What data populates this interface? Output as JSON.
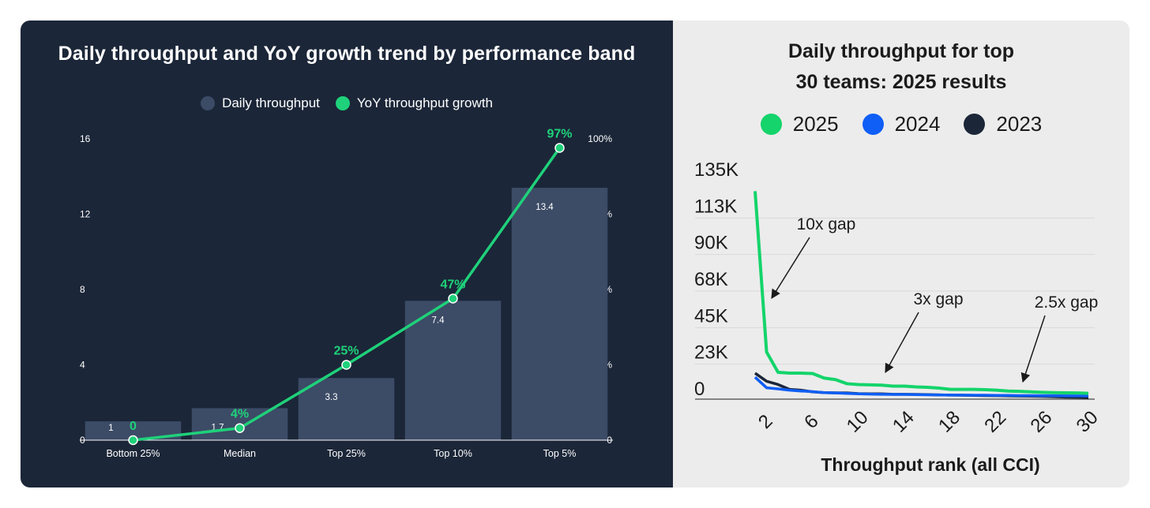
{
  "chart_data": [
    {
      "type": "bar",
      "title": "Daily throughput and YoY growth trend by performance band",
      "categories": [
        "Bottom 25%",
        "Median",
        "Top 25%",
        "Top 10%",
        "Top 5%"
      ],
      "series": [
        {
          "name": "Daily throughput",
          "type": "bar",
          "values": [
            1,
            1.7,
            3.3,
            7.4,
            13.4
          ],
          "labels": [
            "1",
            "1.7",
            "3.3",
            "7.4",
            "13.4"
          ],
          "axis": "left",
          "color": "#3c4b66"
        },
        {
          "name": "YoY throughput growth",
          "type": "line",
          "values": [
            0,
            4,
            25,
            47,
            97
          ],
          "labels": [
            "0",
            "4%",
            "25%",
            "47%",
            "97%"
          ],
          "axis": "right",
          "color": "#1fd17a"
        }
      ],
      "y_left": {
        "range": [
          0,
          16
        ],
        "ticks": [
          "0",
          "4",
          "8",
          "12",
          "16"
        ]
      },
      "y_right": {
        "range": [
          0,
          100
        ],
        "ticks": [
          "0",
          "25%",
          "50%",
          "75%",
          "100%"
        ]
      },
      "legend": "top-center",
      "grid": false
    },
    {
      "type": "line",
      "title": "Daily throughput for top 30 teams: 2025 results",
      "xlabel": "Throughput rank (all CCI)",
      "x_ticks": [
        "2",
        "6",
        "10",
        "14",
        "18",
        "22",
        "26",
        "30"
      ],
      "x_range": [
        1,
        30
      ],
      "y_range": [
        0,
        135000
      ],
      "y_ticks": [
        "0",
        "23K",
        "45K",
        "68K",
        "90K",
        "113K",
        "135K"
      ],
      "x": [
        1,
        2,
        3,
        4,
        5,
        6,
        7,
        8,
        9,
        10,
        11,
        12,
        13,
        14,
        15,
        16,
        17,
        18,
        19,
        20,
        21,
        22,
        23,
        24,
        25,
        26,
        27,
        28,
        29,
        30
      ],
      "series": [
        {
          "name": "2025",
          "color": "#14d46b",
          "values": [
            128000,
            29000,
            16500,
            16000,
            16000,
            15800,
            13000,
            12000,
            9500,
            9000,
            8800,
            8600,
            8000,
            8000,
            7500,
            7300,
            6800,
            6000,
            6000,
            6000,
            5800,
            5500,
            5000,
            4800,
            4500,
            4200,
            4000,
            3900,
            3800,
            3600
          ]
        },
        {
          "name": "2024",
          "color": "#0f5ef5",
          "values": [
            13500,
            7000,
            6300,
            5500,
            5000,
            4600,
            4000,
            3800,
            3500,
            3300,
            3100,
            3000,
            2900,
            2900,
            2800,
            2700,
            2600,
            2500,
            2500,
            2400,
            2400,
            2300,
            2300,
            2200,
            2200,
            2100,
            2100,
            2000,
            2000,
            2000
          ]
        },
        {
          "name": "2023",
          "color": "#1b2638",
          "values": [
            16000,
            11000,
            9000,
            6000,
            5500,
            4500,
            4000,
            3900,
            3800,
            3400,
            3300,
            3300,
            3000,
            3000,
            2900,
            2800,
            2600,
            2500,
            2400,
            2300,
            2200,
            2100,
            2000,
            1900,
            1800,
            1700,
            1500,
            1300,
            1200,
            1100
          ]
        }
      ],
      "annotations": [
        {
          "text": "10x gap"
        },
        {
          "text": "3x gap"
        },
        {
          "text": "2.5x gap"
        }
      ],
      "legend": "top-center",
      "grid": true
    }
  ]
}
